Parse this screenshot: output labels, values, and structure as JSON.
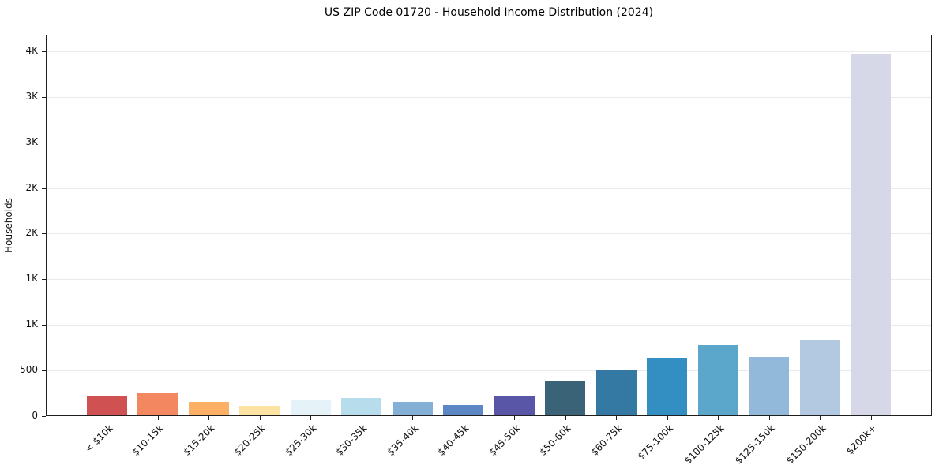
{
  "title": "US ZIP Code 01720 - Household Income Distribution (2024)",
  "chart_data": {
    "type": "bar",
    "title": "US ZIP Code 01720 - Household Income Distribution (2024)",
    "xlabel": "",
    "ylabel": "Households",
    "categories": [
      "< $10k",
      "$10-15k",
      "$15-20k",
      "$20-25k",
      "$25-30k",
      "$30-35k",
      "$35-40k",
      "$40-45k",
      "$45-50k",
      "$50-60k",
      "$60-75k",
      "$75-100k",
      "$100-125k",
      "$125-150k",
      "$150-200k",
      "$200k+"
    ],
    "values": [
      215,
      240,
      150,
      105,
      160,
      190,
      150,
      115,
      215,
      375,
      490,
      630,
      765,
      640,
      820,
      3960
    ],
    "bar_colors": [
      "#d05152",
      "#f3875f",
      "#fbb065",
      "#fce3a2",
      "#e5f2f7",
      "#b7dcec",
      "#85b0d5",
      "#5d86c5",
      "#5956a8",
      "#3b6378",
      "#3379a3",
      "#338ec2",
      "#5ba7cb",
      "#92b9d9",
      "#b3c8e1",
      "#d6d7e7"
    ],
    "ylim": [
      0,
      4180
    ],
    "yticks": {
      "values": [
        0,
        500,
        1000,
        1500,
        2000,
        2500,
        3000,
        3500,
        4000
      ],
      "labels": [
        "0",
        "500",
        "1K",
        "1K",
        "2K",
        "2K",
        "3K",
        "3K",
        "4K"
      ]
    },
    "xtick_rotation_deg": 45,
    "grid": "horizontal",
    "legend": "none",
    "background_color": "#ffffff",
    "gridline_color": "#e9e9ef",
    "spine_color": "#1f1f1f"
  }
}
